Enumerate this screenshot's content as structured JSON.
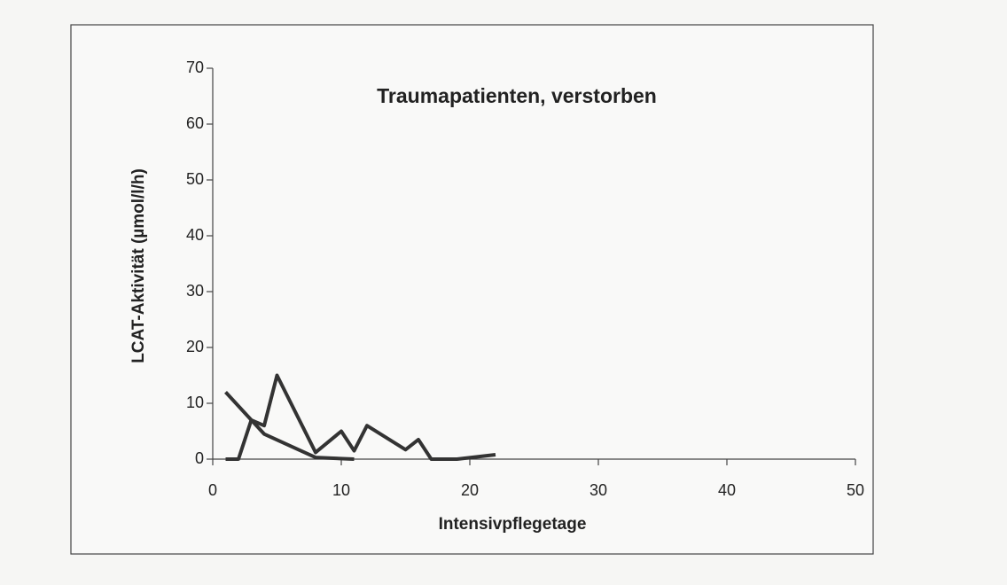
{
  "chart_data": {
    "type": "line",
    "title": "Traumapatienten, verstorben",
    "xlabel": "Intensivpflegetage",
    "ylabel": "LCAT-Aktivität (µmol/l/h)",
    "series": [
      {
        "color": "#333333",
        "x": [
          1,
          4,
          8,
          11
        ],
        "values": [
          12,
          4.5,
          0.3,
          0
        ]
      },
      {
        "color": "#333333",
        "x": [
          1,
          2,
          3,
          4,
          5,
          8,
          10,
          11,
          12,
          15,
          16,
          17,
          19,
          22
        ],
        "values": [
          0,
          0,
          7,
          6,
          15,
          1.2,
          5,
          1.5,
          6,
          1.7,
          3.5,
          0,
          0,
          0.8
        ]
      }
    ],
    "xlim": [
      0,
      50
    ],
    "xticks": [
      0,
      10,
      20,
      30,
      40,
      50
    ],
    "ylim": [
      0,
      70
    ],
    "yticks": [
      0,
      10,
      20,
      30,
      40,
      50,
      60,
      70
    ]
  }
}
